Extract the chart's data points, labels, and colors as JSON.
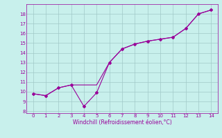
{
  "line1_x": [
    0,
    1,
    2,
    3,
    4,
    5,
    6,
    7,
    8,
    9,
    10,
    11,
    12,
    13,
    14
  ],
  "line1_y": [
    9.8,
    9.6,
    10.4,
    10.7,
    8.5,
    9.9,
    13.0,
    14.4,
    14.9,
    15.2,
    15.4,
    15.6,
    16.5,
    18.0,
    18.4
  ],
  "line2_x": [
    0,
    1,
    2,
    3,
    4,
    5,
    6,
    7,
    8,
    9,
    10,
    11,
    12,
    13,
    14
  ],
  "line2_y": [
    9.8,
    9.6,
    10.4,
    10.7,
    10.7,
    10.7,
    13.0,
    14.4,
    14.9,
    15.2,
    15.4,
    15.6,
    16.5,
    18.0,
    18.4
  ],
  "line_color": "#990099",
  "bg_color": "#c8f0ec",
  "grid_color": "#a0c8c8",
  "xlabel": "Windchill (Refroidissement éolien,°C)",
  "xlabel_color": "#990099",
  "ylabel_ticks": [
    8,
    9,
    10,
    11,
    12,
    13,
    14,
    15,
    16,
    17,
    18
  ],
  "xlim": [
    -0.5,
    14.5
  ],
  "ylim": [
    7.8,
    19.0
  ],
  "xticks": [
    0,
    1,
    2,
    3,
    4,
    5,
    6,
    7,
    8,
    9,
    10,
    11,
    12,
    13,
    14
  ],
  "marker": "D",
  "markersize": 2,
  "linewidth": 0.8
}
